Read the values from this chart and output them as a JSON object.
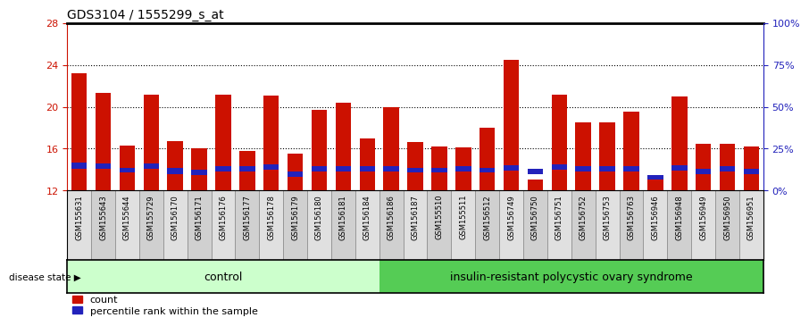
{
  "title": "GDS3104 / 1555299_s_at",
  "samples": [
    "GSM155631",
    "GSM155643",
    "GSM155644",
    "GSM155729",
    "GSM156170",
    "GSM156171",
    "GSM156176",
    "GSM156177",
    "GSM156178",
    "GSM156179",
    "GSM156180",
    "GSM156181",
    "GSM156184",
    "GSM156186",
    "GSM156187",
    "GSM155510",
    "GSM155511",
    "GSM156512",
    "GSM156749",
    "GSM156750",
    "GSM156751",
    "GSM156752",
    "GSM156753",
    "GSM156763",
    "GSM156946",
    "GSM156948",
    "GSM156949",
    "GSM156950",
    "GSM156951"
  ],
  "count_values": [
    23.2,
    21.3,
    16.3,
    21.2,
    16.7,
    16.0,
    21.2,
    15.8,
    21.1,
    15.5,
    19.7,
    20.4,
    17.0,
    20.0,
    16.6,
    16.2,
    16.1,
    18.0,
    24.5,
    13.1,
    21.2,
    18.5,
    18.5,
    19.5,
    13.2,
    21.0,
    16.5,
    16.5,
    16.2
  ],
  "blue_bottom_values": [
    14.1,
    14.1,
    13.7,
    14.1,
    13.6,
    13.5,
    13.8,
    13.8,
    14.0,
    13.3,
    13.8,
    13.8,
    13.8,
    13.8,
    13.7,
    13.7,
    13.8,
    13.7,
    13.9,
    13.6,
    14.0,
    13.8,
    13.8,
    13.8,
    13.1,
    13.9,
    13.6,
    13.8,
    13.6
  ],
  "blue_heights": [
    0.55,
    0.5,
    0.5,
    0.5,
    0.55,
    0.5,
    0.5,
    0.5,
    0.5,
    0.5,
    0.5,
    0.5,
    0.5,
    0.5,
    0.5,
    0.5,
    0.5,
    0.5,
    0.5,
    0.5,
    0.5,
    0.5,
    0.5,
    0.5,
    0.4,
    0.5,
    0.5,
    0.5,
    0.5
  ],
  "n_control": 13,
  "ylim_left": [
    12,
    28
  ],
  "yticks_left": [
    12,
    16,
    20,
    24,
    28
  ],
  "yticks_right": [
    0,
    25,
    50,
    75,
    100
  ],
  "ytick_labels_right": [
    "0%",
    "25%",
    "50%",
    "75%",
    "100%"
  ],
  "bar_color_red": "#cc1100",
  "bar_color_blue": "#2222bb",
  "bar_width": 0.65,
  "control_label": "control",
  "disease_label": "insulin-resistant polycystic ovary syndrome",
  "disease_state_label": "disease state",
  "legend_count": "count",
  "legend_percentile": "percentile rank within the sample",
  "control_bg": "#ccffcc",
  "disease_bg": "#55cc55",
  "bar_bottom": 12,
  "left_axis_color": "#cc1100",
  "right_axis_color": "#2222bb",
  "grid_yticks": [
    16,
    20,
    24
  ],
  "tickbox_odd": "#d0d0d0",
  "tickbox_even": "#e0e0e0"
}
